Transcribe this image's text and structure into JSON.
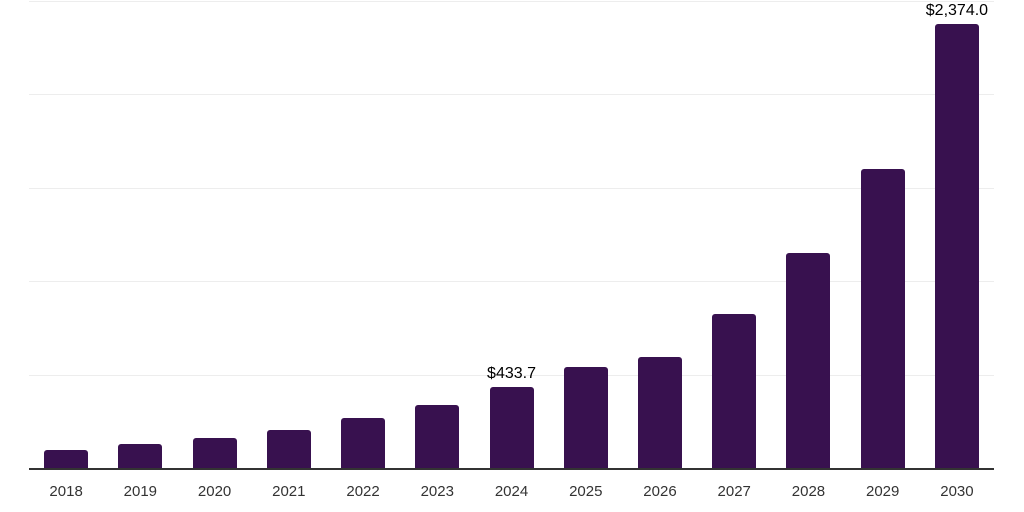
{
  "chart_data": {
    "type": "bar",
    "categories": [
      "2018",
      "2019",
      "2020",
      "2021",
      "2022",
      "2023",
      "2024",
      "2025",
      "2026",
      "2027",
      "2028",
      "2029",
      "2030"
    ],
    "values": [
      99,
      126,
      158,
      201,
      265,
      335,
      433.7,
      538,
      592,
      824,
      1148,
      1601,
      2374
    ],
    "value_labels": [
      "",
      "",
      "",
      "",
      "",
      "",
      "$433.7",
      "",
      "",
      "",
      "",
      "",
      "$2,374.0"
    ],
    "title": "",
    "xlabel": "",
    "ylabel": "",
    "ylim": [
      0,
      2500
    ],
    "gridline_values": [
      500,
      1000,
      1500,
      2000,
      2500
    ],
    "grid": "horizontal",
    "legend_position": "none",
    "y_axis_labels_visible": false,
    "colors": {
      "bar": "#38114f",
      "axis_line": "#333333",
      "gridline": "#ededed",
      "value_label": "#000000",
      "tick_label": "#333333",
      "background": "#ffffff"
    }
  }
}
